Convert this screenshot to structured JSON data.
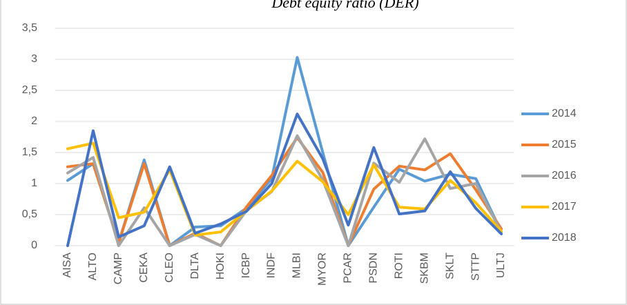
{
  "chart_data": {
    "type": "line",
    "title": "Debt equity ratio (DER)",
    "categories": [
      "AISA",
      "ALTO",
      "CAMP",
      "CEKA",
      "CLEO",
      "DLTA",
      "HOKI",
      "ICBP",
      "INDF",
      "MLBI",
      "MYOR",
      "PCAR",
      "PSDN",
      "ROTI",
      "SKBM",
      "SKLT",
      "STTP",
      "ULTJ"
    ],
    "series": [
      {
        "name": "2014",
        "color": "#5B9BD5",
        "values": [
          1.05,
          1.32,
          0.05,
          1.38,
          0,
          0.3,
          0.32,
          0.6,
          1.08,
          3.03,
          1.5,
          0,
          0.62,
          1.23,
          1.04,
          1.15,
          1.08,
          0.22
        ]
      },
      {
        "name": "2015",
        "color": "#ED7D31",
        "values": [
          1.27,
          1.32,
          0.05,
          1.32,
          0,
          0.2,
          0,
          0.62,
          1.13,
          1.74,
          1.18,
          0,
          0.91,
          1.28,
          1.22,
          1.48,
          0.9,
          0.27
        ]
      },
      {
        "name": "2016",
        "color": "#A5A5A5",
        "values": [
          1.17,
          1.42,
          0,
          0.61,
          0,
          0.18,
          0,
          0.56,
          0.87,
          1.77,
          1.06,
          0,
          1.33,
          1.02,
          1.72,
          0.92,
          1.0,
          0.22
        ]
      },
      {
        "name": "2017",
        "color": "#FFC000",
        "values": [
          1.56,
          1.65,
          0.45,
          0.54,
          1.22,
          0.17,
          0.22,
          0.56,
          0.88,
          1.36,
          1.03,
          0.5,
          1.3,
          0.62,
          0.59,
          1.05,
          0.69,
          0.23
        ]
      },
      {
        "name": "2018",
        "color": "#4472C4",
        "values": [
          0,
          1.85,
          0.14,
          0.32,
          1.27,
          0.2,
          0.35,
          0.55,
          1.0,
          2.12,
          1.4,
          0.33,
          1.58,
          0.51,
          0.56,
          1.19,
          0.6,
          0.19
        ]
      }
    ],
    "ylim": [
      0,
      3.5
    ],
    "yticks": [
      0,
      {
        "value": 0.5,
        "label": "0,5"
      },
      1,
      {
        "value": 1.5,
        "label": "1,5"
      },
      2,
      {
        "value": 2.5,
        "label": "2,5"
      },
      3,
      {
        "value": 3.5,
        "label": "3,5"
      }
    ],
    "grid": true,
    "legend": "right"
  }
}
